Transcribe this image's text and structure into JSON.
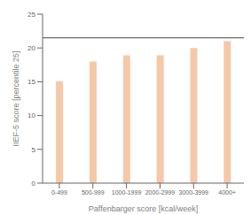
{
  "chart_data": {
    "type": "bar",
    "categories": [
      "0-499",
      "500-999",
      "1000-1999",
      "2000-2999",
      "3000-3999",
      "4000+"
    ],
    "values": [
      15.1,
      18.0,
      18.9,
      18.9,
      20.0,
      21.0
    ],
    "color": "#f5c8a8",
    "xlabel": "Paffenbarger score [kcal/week]",
    "ylabel": "IIEF-5 score [percentile 25]",
    "ylim": [
      0,
      25
    ],
    "yticks": [
      0,
      5,
      10,
      15,
      20,
      25
    ],
    "grid": false,
    "reference_lines": [
      {
        "value": 21.5,
        "color": "#444444"
      }
    ]
  }
}
